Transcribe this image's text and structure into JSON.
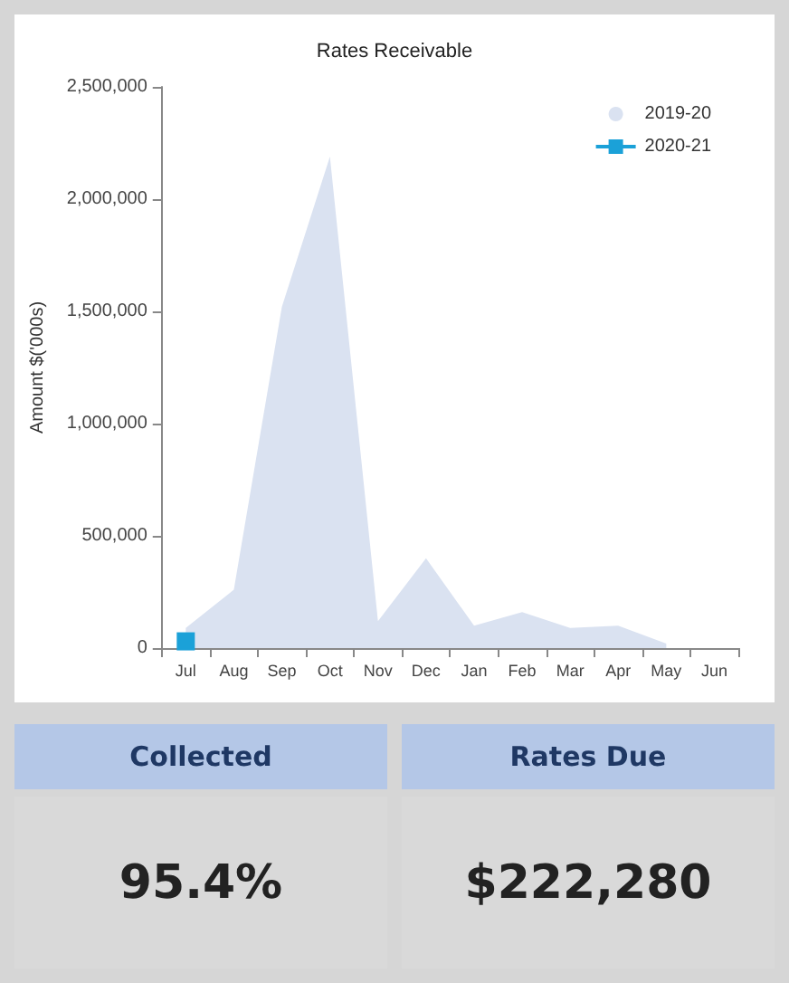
{
  "chart_data": [
    {
      "type": "area",
      "title": "Rates Receivable",
      "ylabel": "Amount $('000s)",
      "categories": [
        "Jul",
        "Aug",
        "Sep",
        "Oct",
        "Nov",
        "Dec",
        "Jan",
        "Feb",
        "Mar",
        "Apr",
        "May",
        "Jun"
      ],
      "series": [
        {
          "name": "2019-20",
          "type": "area",
          "color": "#dae2f1",
          "values": [
            90000,
            260000,
            1520000,
            2190000,
            120000,
            400000,
            100000,
            160000,
            90000,
            100000,
            20000,
            null
          ]
        },
        {
          "name": "2020-21",
          "type": "line",
          "color": "#1ba1d8",
          "marker": "square",
          "values": [
            30000,
            null,
            null,
            null,
            null,
            null,
            null,
            null,
            null,
            null,
            null,
            null
          ]
        }
      ],
      "ylim": [
        0,
        2500000
      ],
      "yticks": [
        {
          "value": 0,
          "label": "0"
        },
        {
          "value": 500000,
          "label": "500,000"
        },
        {
          "value": 1000000,
          "label": "1,000,000"
        },
        {
          "value": 1500000,
          "label": "1,500,000"
        },
        {
          "value": 2000000,
          "label": "2,000,000"
        },
        {
          "value": 2500000,
          "label": "2,500,000"
        }
      ],
      "grid": false,
      "legend": "top right"
    },
    {
      "type": "other",
      "title": "Collected",
      "annotations": [
        "95.4%"
      ]
    },
    {
      "type": "other",
      "title": "Rates Due",
      "annotations": [
        "$222,280"
      ]
    }
  ]
}
